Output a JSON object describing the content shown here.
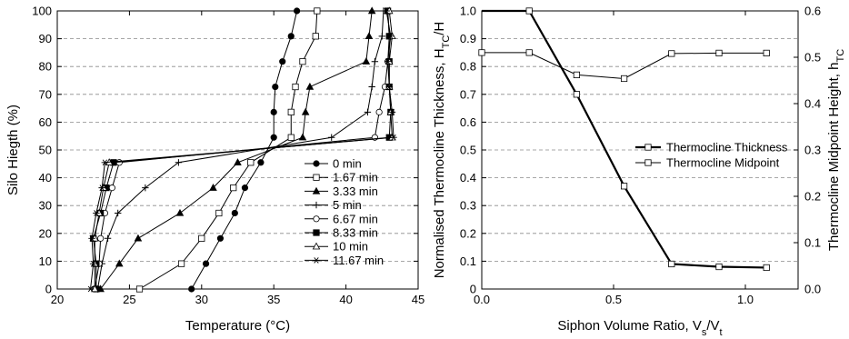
{
  "chart_data": [
    {
      "type": "line",
      "xlabel": "Temperature (°C)",
      "ylabel": "Silo Hiegth (%)",
      "xlim": [
        20,
        45
      ],
      "ylim": [
        0,
        100
      ],
      "xticks": [
        20,
        25,
        30,
        35,
        40,
        45
      ],
      "yticks": [
        0,
        10,
        20,
        30,
        40,
        50,
        60,
        70,
        80,
        90,
        100
      ],
      "grid": "horizontal dashed",
      "legend": "lower-right",
      "y": [
        0,
        9.1,
        18.2,
        27.3,
        36.4,
        45.5,
        54.5,
        63.6,
        72.7,
        81.8,
        90.9,
        100
      ],
      "series": [
        {
          "name": "0 min",
          "marker": "filled-circle",
          "x": [
            29.3,
            30.3,
            31.3,
            32.3,
            33.0,
            34.1,
            35.0,
            35.0,
            35.1,
            35.6,
            36.2,
            36.6
          ]
        },
        {
          "name": "1.67 min",
          "marker": "open-square",
          "x": [
            25.7,
            28.6,
            30.0,
            31.2,
            32.2,
            33.4,
            36.2,
            36.2,
            36.5,
            37.0,
            37.9,
            38.0
          ]
        },
        {
          "name": "3.33 min",
          "marker": "filled-triangle",
          "x": [
            23.0,
            24.3,
            25.6,
            28.5,
            30.8,
            32.5,
            37.0,
            37.2,
            37.5,
            41.4,
            41.6,
            41.8
          ]
        },
        {
          "name": "5 min",
          "marker": "plus",
          "x": [
            22.8,
            23.1,
            23.5,
            24.2,
            26.1,
            28.4,
            39.0,
            41.5,
            41.8,
            42.0,
            42.5,
            42.6
          ]
        },
        {
          "name": "6.67 min",
          "marker": "open-circle",
          "x": [
            22.6,
            22.9,
            23.0,
            23.3,
            23.8,
            24.3,
            42.0,
            42.3,
            42.7,
            42.9,
            43.0,
            42.9
          ]
        },
        {
          "name": "8.33 min",
          "marker": "filled-square",
          "x": [
            22.7,
            22.7,
            22.5,
            23.0,
            23.4,
            23.9,
            43.0,
            43.1,
            43.0,
            43.0,
            43.0,
            42.9
          ]
        },
        {
          "name": "10 min",
          "marker": "open-triangle",
          "x": [
            22.6,
            22.6,
            22.6,
            22.9,
            23.2,
            23.6,
            43.2,
            43.1,
            43.0,
            43.0,
            43.2,
            43.0
          ]
        },
        {
          "name": "11.67 min",
          "marker": "asterisk",
          "x": [
            22.3,
            22.5,
            22.4,
            22.7,
            23.1,
            23.3,
            43.3,
            43.2,
            43.0,
            42.9,
            43.1,
            42.8
          ]
        }
      ]
    },
    {
      "type": "line",
      "xlabel": "Siphon Volume Ratio, V",
      "xlabel_sub1": "s",
      "xlabel_mid": "/V",
      "xlabel_sub2": "t",
      "ylabel": "Normalised Thermocline Thickness, H",
      "ylabel_sub": "TC",
      "ylabel_tail": "/H",
      "y2label": "Thermocline Midpoint Height, h",
      "y2label_sub": "TC",
      "xlim": [
        0,
        1.2
      ],
      "ylim": [
        0,
        1.0
      ],
      "y2lim": [
        0,
        0.6
      ],
      "xticks": [
        "0.0",
        "0.5",
        "1.0"
      ],
      "xtick_values": [
        0,
        0.5,
        1.0
      ],
      "yticks": [
        "0",
        "0.1",
        "0.2",
        "0.3",
        "0.4",
        "0.5",
        "0.6",
        "0.7",
        "0.8",
        "0.9",
        "1.0"
      ],
      "y2ticks": [
        "0.0",
        "0.1",
        "0.2",
        "0.3",
        "0.4",
        "0.5",
        "0.6"
      ],
      "grid": "horizontal dashed",
      "legend": "right",
      "series": [
        {
          "name": "Thermocline Thickness",
          "axis": "left",
          "marker": "open-square",
          "line": "thick",
          "x": [
            0.0,
            0.18,
            0.36,
            0.54,
            0.72,
            0.9,
            1.08
          ],
          "values": [
            1.0,
            1.0,
            0.7,
            0.37,
            0.09,
            0.08,
            0.077
          ]
        },
        {
          "name": "Thermocline Midpoint",
          "axis": "right",
          "marker": "open-square",
          "line": "thin",
          "x": [
            0.0,
            0.18,
            0.36,
            0.54,
            0.72,
            0.9,
            1.08
          ],
          "values": [
            0.51,
            0.51,
            0.462,
            0.454,
            0.508,
            0.509,
            0.509
          ]
        }
      ]
    }
  ]
}
